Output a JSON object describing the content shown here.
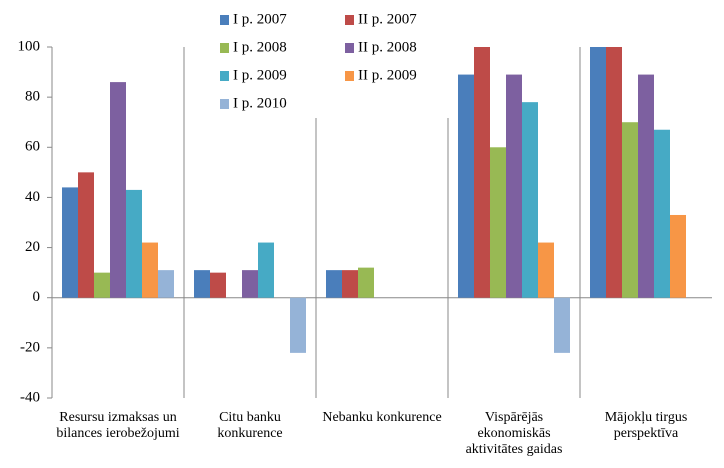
{
  "chart_data": {
    "type": "bar",
    "categories": [
      "Resursu izmaksas un bilances ierobežojumi",
      "Citu banku konkurence",
      "Nebanku konkurence",
      "Vispārējās ekonomiskās aktivitātes gaidas",
      "Mājokļu tirgus perspektīva"
    ],
    "series": [
      {
        "name": "I p. 2007",
        "color": "#4a7ebb",
        "values": [
          44,
          11,
          11,
          89,
          100
        ]
      },
      {
        "name": "II p. 2007",
        "color": "#be4b48",
        "values": [
          50,
          10,
          11,
          100,
          100
        ]
      },
      {
        "name": "I p. 2008",
        "color": "#98b954",
        "values": [
          10,
          0,
          12,
          60,
          70
        ]
      },
      {
        "name": "II p. 2008",
        "color": "#7d60a0",
        "values": [
          86,
          11,
          0,
          89,
          89
        ]
      },
      {
        "name": "I p. 2009",
        "color": "#46aac5",
        "values": [
          43,
          22,
          0,
          78,
          67
        ]
      },
      {
        "name": "II p. 2009",
        "color": "#f79646",
        "values": [
          22,
          0,
          0,
          22,
          33
        ]
      },
      {
        "name": "I p. 2010",
        "color": "#95b3d7",
        "values": [
          11,
          -22,
          0,
          -22,
          0
        ]
      }
    ],
    "ylim": [
      -40,
      100
    ],
    "yticks": [
      -40,
      -20,
      0,
      20,
      40,
      60,
      80,
      100
    ],
    "grid": false
  }
}
